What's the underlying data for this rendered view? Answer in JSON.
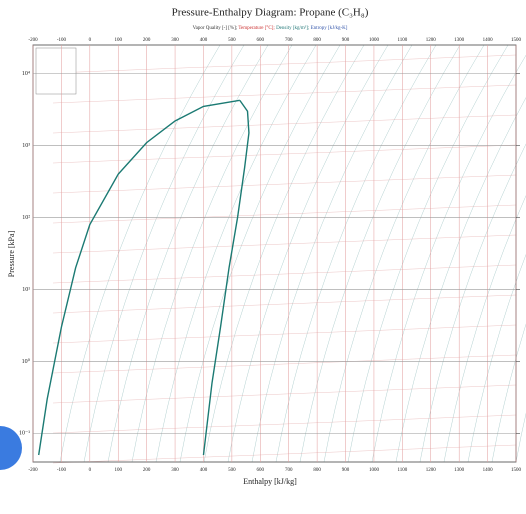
{
  "chart_data": {
    "type": "line",
    "title": "Pressure-Enthalpy Diagram: Propane (C₃H₈)",
    "subtitle": [
      "Vapor Quality [-] [%];",
      "Temperature [°C];",
      "Density [kg/m³];",
      "Entropy [kJ/kg-K]"
    ],
    "xlabel": "Enthalpy [kJ/kg]",
    "ylabel": "Pressure [kPa]",
    "xlim": [
      -200,
      1500
    ],
    "xticks": [
      -200,
      -100,
      0,
      100,
      200,
      300,
      400,
      500,
      600,
      700,
      800,
      900,
      1000,
      1100,
      1200,
      1300,
      1400,
      1500
    ],
    "ylim": [
      0.04,
      25000
    ],
    "log_y": true,
    "yticks": [
      {
        "value": 0.1,
        "label": "10⁻¹"
      },
      {
        "value": 1,
        "label": "10⁰"
      },
      {
        "value": 10,
        "label": "10¹"
      },
      {
        "value": 100,
        "label": "10²"
      },
      {
        "value": 1000,
        "label": "10³"
      },
      {
        "value": 10000,
        "label": "10⁴"
      }
    ],
    "grid": true,
    "series": [
      {
        "color": "#1b7a73",
        "x": [
          -180,
          -150,
          -100,
          -50,
          0,
          100,
          200,
          300,
          400,
          528
        ],
        "values": [
          0.05,
          0.3,
          3,
          20,
          80,
          400,
          1100,
          2200,
          3500,
          4250
        ]
      },
      {
        "color": "#1b7a73",
        "x": [
          528,
          555,
          560,
          545,
          520,
          490,
          460,
          430,
          400
        ],
        "values": [
          4250,
          3000,
          1500,
          500,
          100,
          20,
          3,
          0.5,
          0.05
        ]
      }
    ]
  }
}
